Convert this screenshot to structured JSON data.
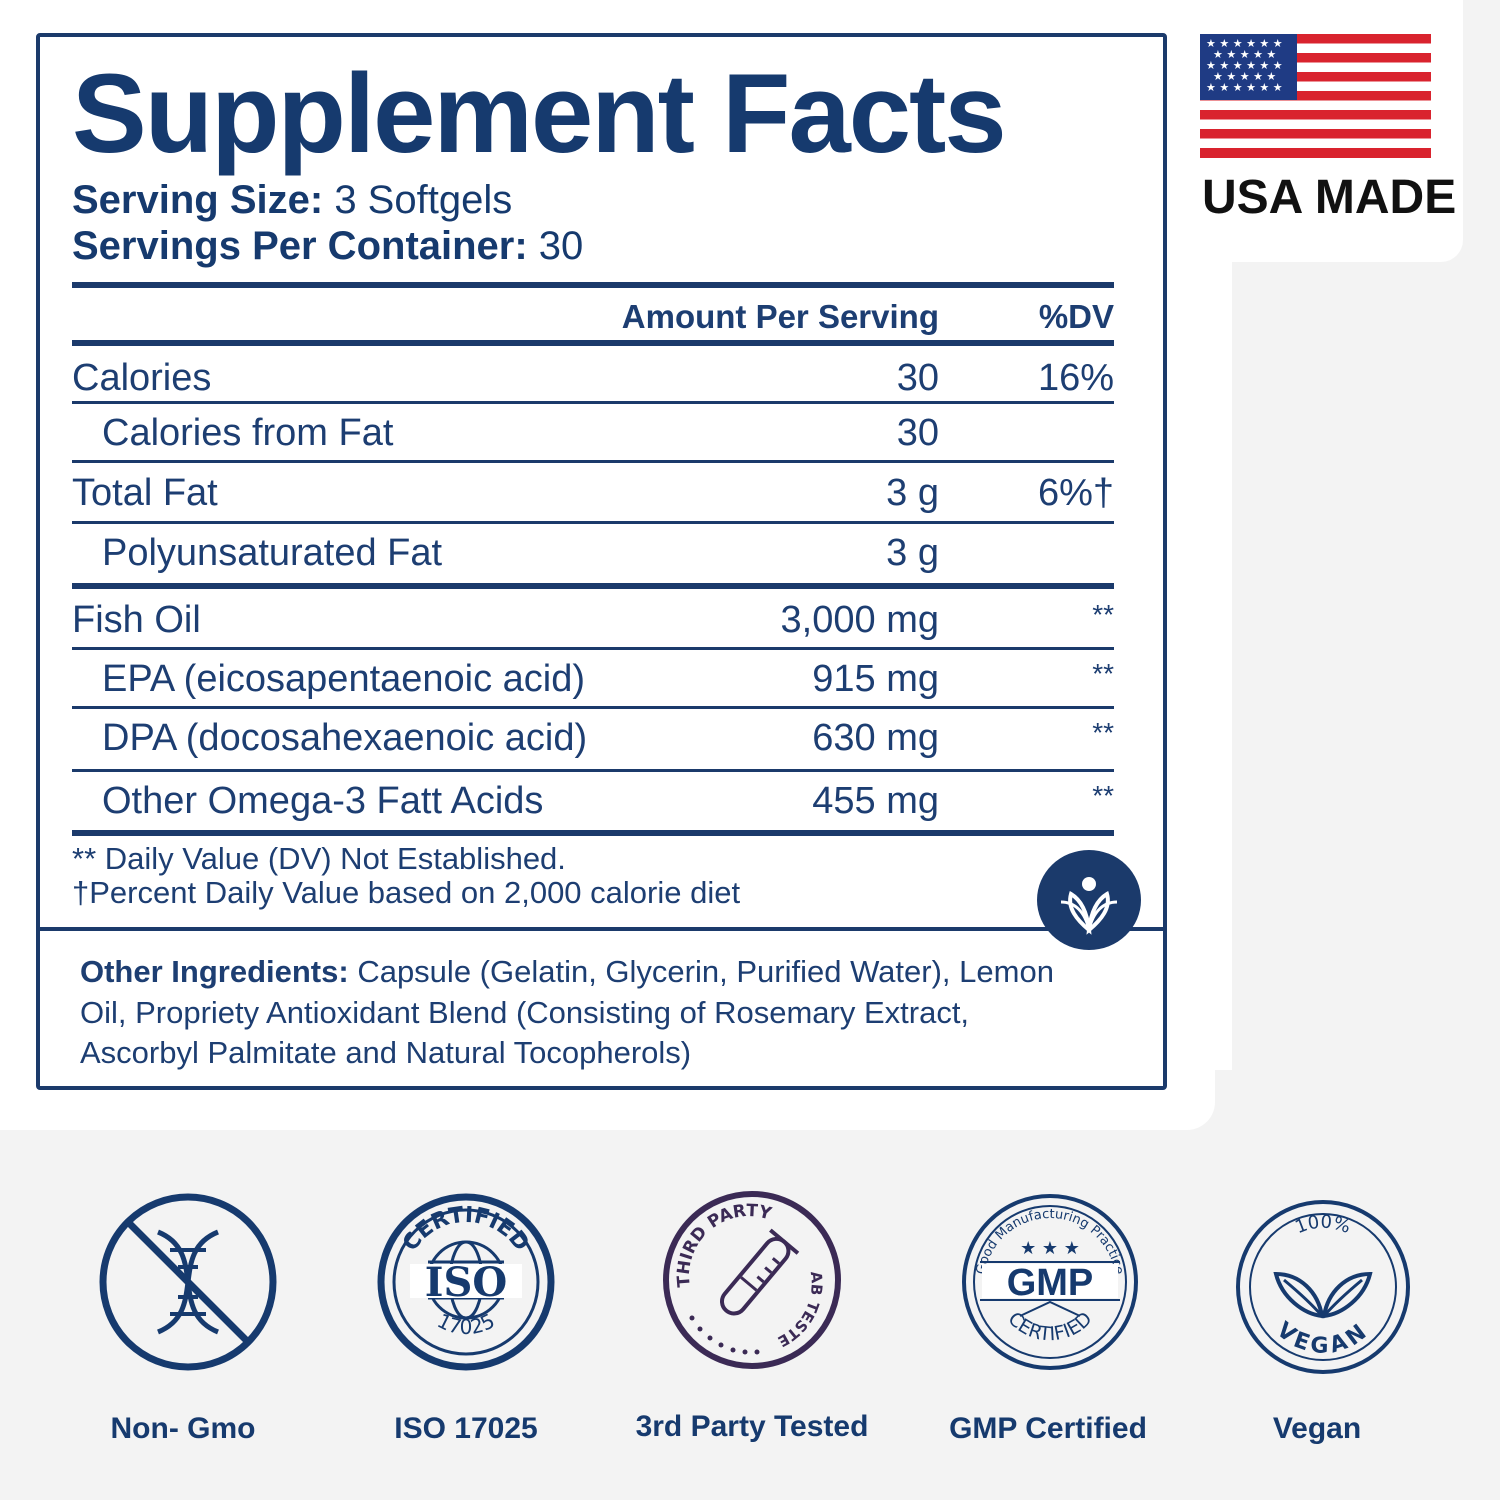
{
  "title": "Supplement Facts",
  "serving": {
    "size_label": "Serving Size:",
    "size_value": " 3 Softgels",
    "per_container_label": "Servings Per Container:",
    "per_container_value": " 30"
  },
  "table": {
    "header_amount": "Amount Per Serving",
    "header_dv": "%DV",
    "rows": [
      {
        "name": "Calories",
        "amount": "30",
        "dv": "16%"
      },
      {
        "name": "Calories from Fat",
        "amount": "30",
        "dv": ""
      },
      {
        "name": "Total Fat",
        "amount": "3 g",
        "dv": "6%†"
      },
      {
        "name": "Polyunsaturated Fat",
        "amount": "3 g",
        "dv": ""
      },
      {
        "name": "Fish Oil",
        "amount": "3,000 mg",
        "dv": "**"
      },
      {
        "name": "EPA (eicosapentaenoic acid)",
        "amount": "915 mg",
        "dv": "**"
      },
      {
        "name": "DPA (docosahexaenoic acid)",
        "amount": "630 mg",
        "dv": "**"
      },
      {
        "name": "Other Omega-3 Fatt Acids",
        "amount": "455 mg",
        "dv": "**"
      }
    ]
  },
  "notes": {
    "line1": "** Daily Value (DV) Not Established.",
    "line2": "†Percent Daily Value based on 2,000 calorie diet"
  },
  "ingredients": {
    "label": "Other Ingredients:",
    "text": " Capsule (Gelatin, Glycerin, Purified Water), Lemon Oil, Propriety Antioxidant Blend (Consisting of Rosemary Extract, Ascorbyl Palmitate and Natural Tocopherols)"
  },
  "usa_made": "USA MADE",
  "badges": {
    "certified_arc": "CERTIFIED",
    "iso_big": "ISO",
    "iso_num": "17025",
    "third_party_arc": "THIRD PARTY",
    "lab_tested_arc": "LAB TESTED",
    "gmp_arc_top": "Good Manufacturing Practice",
    "gmp_big": "GMP",
    "gmp_arc_bottom": "CERTIFIED",
    "vegan_top": "100%",
    "vegan_bottom": "VEGAN"
  },
  "badge_labels": {
    "non_gmo": "Non- Gmo",
    "iso": "ISO 17025",
    "third_party": "3rd Party Tested",
    "gmp": "GMP Certified",
    "vegan": "Vegan"
  },
  "colors": {
    "navy": "#1b3a6b",
    "flag_red": "#d9232e",
    "flag_blue": "#1f3b84",
    "background": "#f3f3f3"
  }
}
